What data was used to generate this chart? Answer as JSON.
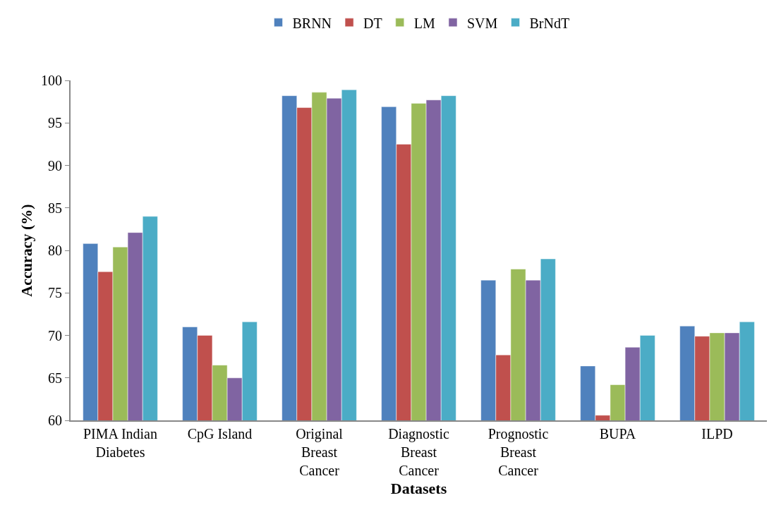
{
  "chart_data": {
    "type": "bar",
    "xlabel": "Datasets",
    "ylabel": "Accuracy (%)",
    "categories": [
      "PIMA Indian Diabetes",
      "CpG Island",
      "Original Breast Cancer",
      "Diagnostic Breast Cancer",
      "Prognostic Breast Cancer",
      "BUPA",
      "ILPD"
    ],
    "series": [
      {
        "name": "BRNN",
        "color": "#4f81bd",
        "values": [
          80.8,
          71.0,
          98.2,
          96.9,
          76.5,
          66.4,
          71.1
        ]
      },
      {
        "name": "DT",
        "color": "#c0504d",
        "values": [
          77.5,
          70.0,
          96.8,
          92.5,
          67.7,
          60.6,
          69.9
        ]
      },
      {
        "name": "LM",
        "color": "#9bbb59",
        "values": [
          80.4,
          66.5,
          98.6,
          97.3,
          77.8,
          64.2,
          70.3
        ]
      },
      {
        "name": "SVM",
        "color": "#8064a2",
        "values": [
          82.1,
          65.0,
          97.9,
          97.7,
          76.5,
          68.6,
          70.3
        ]
      },
      {
        "name": "BrNdT",
        "color": "#4bacc6",
        "values": [
          84.0,
          71.6,
          98.9,
          98.2,
          79.0,
          70.0,
          71.6
        ]
      }
    ],
    "ylim": [
      60,
      100
    ],
    "yticks": [
      60,
      65,
      70,
      75,
      80,
      85,
      90,
      95,
      100
    ],
    "grid": false,
    "legend": "top"
  }
}
